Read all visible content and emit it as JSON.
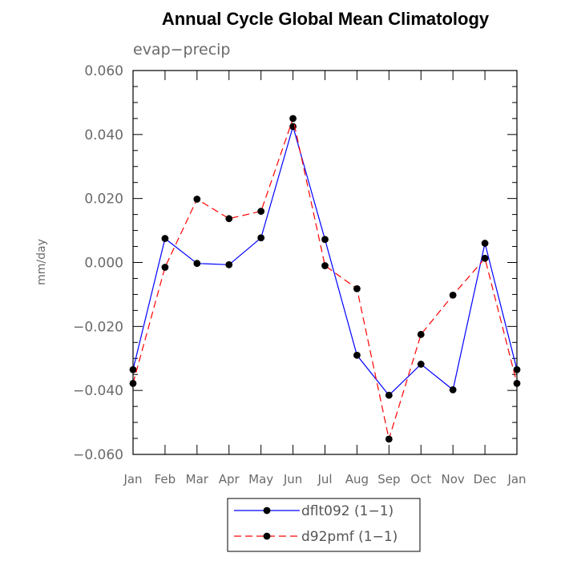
{
  "chart_data": {
    "type": "line",
    "title": "Annual Cycle Global Mean Climatology",
    "subtitle": "evap−precip",
    "xlabel": "",
    "ylabel": "mm/day",
    "categories": [
      "Jan",
      "Feb",
      "Mar",
      "Apr",
      "May",
      "Jun",
      "Jul",
      "Aug",
      "Sep",
      "Oct",
      "Nov",
      "Dec",
      "Jan"
    ],
    "ylim": [
      -0.06,
      0.06
    ],
    "y_ticks": [
      0.06,
      0.04,
      0.02,
      0.0,
      -0.02,
      -0.04,
      -0.06
    ],
    "y_tick_labels": [
      "0.060",
      "0.040",
      "0.020",
      "0.000",
      "−0.020",
      "−0.040",
      "−0.060"
    ],
    "grid": false,
    "legend_position": "bottom",
    "series": [
      {
        "name": "dflt092 (1−1)",
        "color": "#0000ff",
        "dash": "solid",
        "marker": "filled-circle",
        "values": [
          -0.0335,
          0.0075,
          -0.0003,
          -0.0007,
          0.0077,
          0.0425,
          0.0072,
          -0.029,
          -0.0415,
          -0.0318,
          -0.0398,
          0.006,
          -0.0335
        ]
      },
      {
        "name": "d92pmf (1−1)",
        "color": "#ff0000",
        "dash": "dashed",
        "marker": "filled-circle",
        "values": [
          -0.0378,
          -0.0015,
          0.0198,
          0.0137,
          0.016,
          0.045,
          -0.001,
          -0.0082,
          -0.0552,
          -0.0225,
          -0.0102,
          0.0013,
          -0.0378
        ]
      }
    ]
  }
}
